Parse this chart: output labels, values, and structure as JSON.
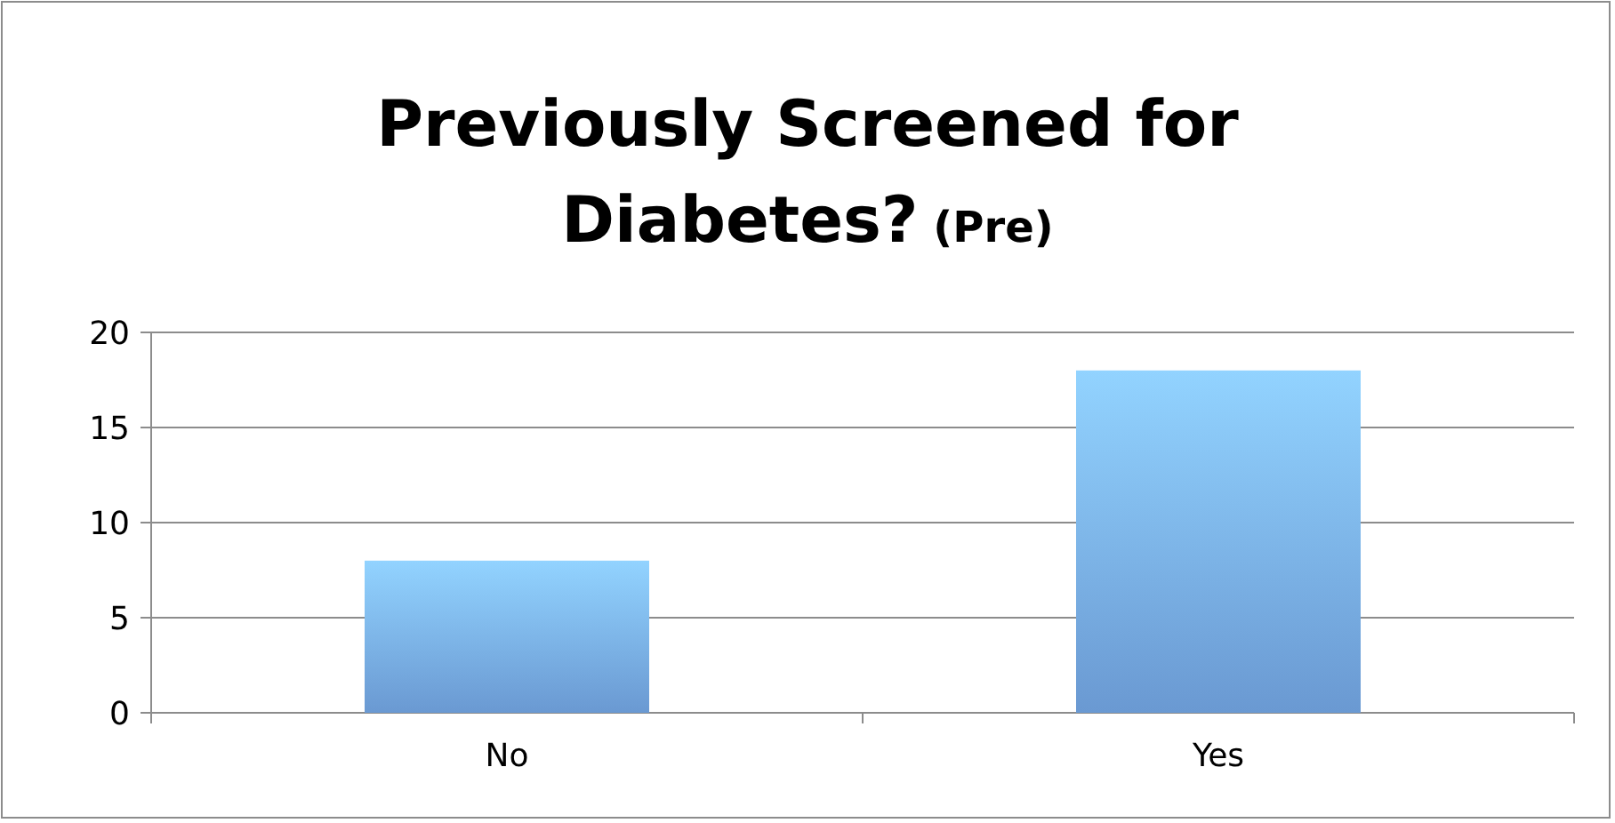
{
  "chart_data": {
    "type": "bar",
    "title": "Previously Screened for Diabetes?",
    "subtitle": "(Pre)",
    "categories": [
      "No",
      "Yes"
    ],
    "values": [
      8,
      18
    ],
    "color": "#76aaea",
    "ylim": [
      0,
      20
    ],
    "yticks": [
      0,
      5,
      10,
      15,
      20
    ],
    "grid": "y"
  }
}
